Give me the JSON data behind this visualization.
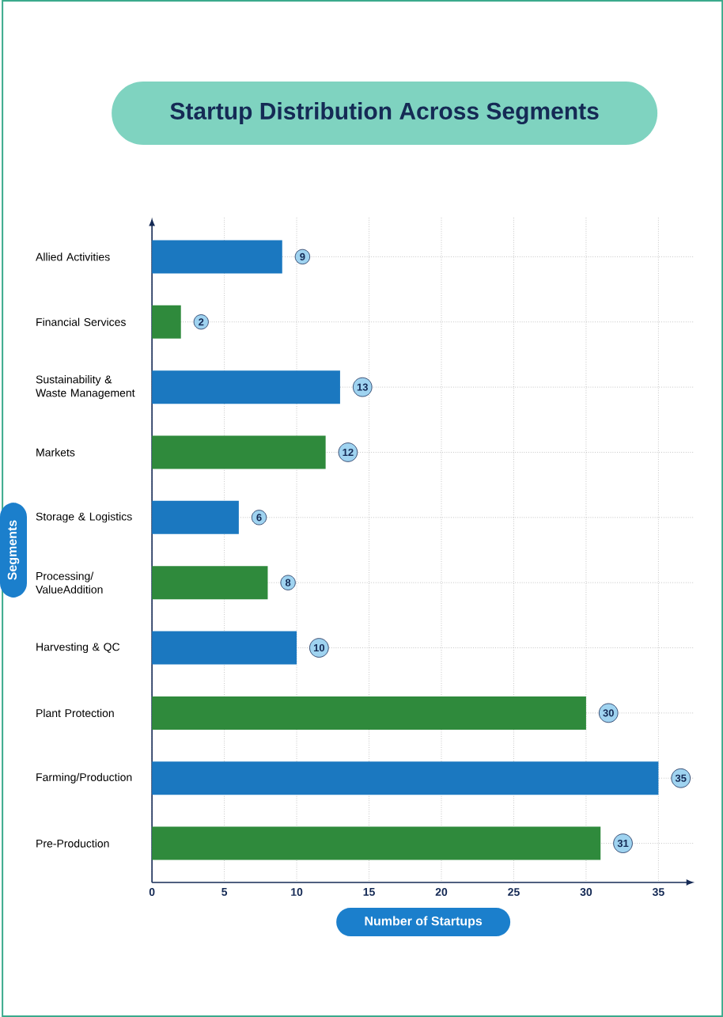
{
  "chart_data": {
    "type": "bar",
    "orientation": "horizontal",
    "title": "Startup Distribution Across Segments",
    "xlabel": "Number of Startups",
    "ylabel": "Segments",
    "categories": [
      "Allied Activities",
      "Financial Services",
      "Sustainability & Waste Management",
      "Markets",
      "Storage & Logistics",
      "Processing/ ValueAddition",
      "Harvesting & QC",
      "Plant Protection",
      "Farming/Production",
      "Pre-Production"
    ],
    "values": [
      9,
      2,
      13,
      12,
      6,
      8,
      10,
      30,
      35,
      31
    ],
    "colors": [
      "#1b78c0",
      "#2f8a3c",
      "#1b78c0",
      "#2f8a3c",
      "#1b78c0",
      "#2f8a3c",
      "#1b78c0",
      "#2f8a3c",
      "#1b78c0",
      "#2f8a3c"
    ],
    "xlim": [
      0,
      37.5
    ],
    "xticks": [
      0,
      5,
      10,
      15,
      20,
      25,
      30,
      35
    ],
    "grid": true,
    "data_labels": true
  }
}
